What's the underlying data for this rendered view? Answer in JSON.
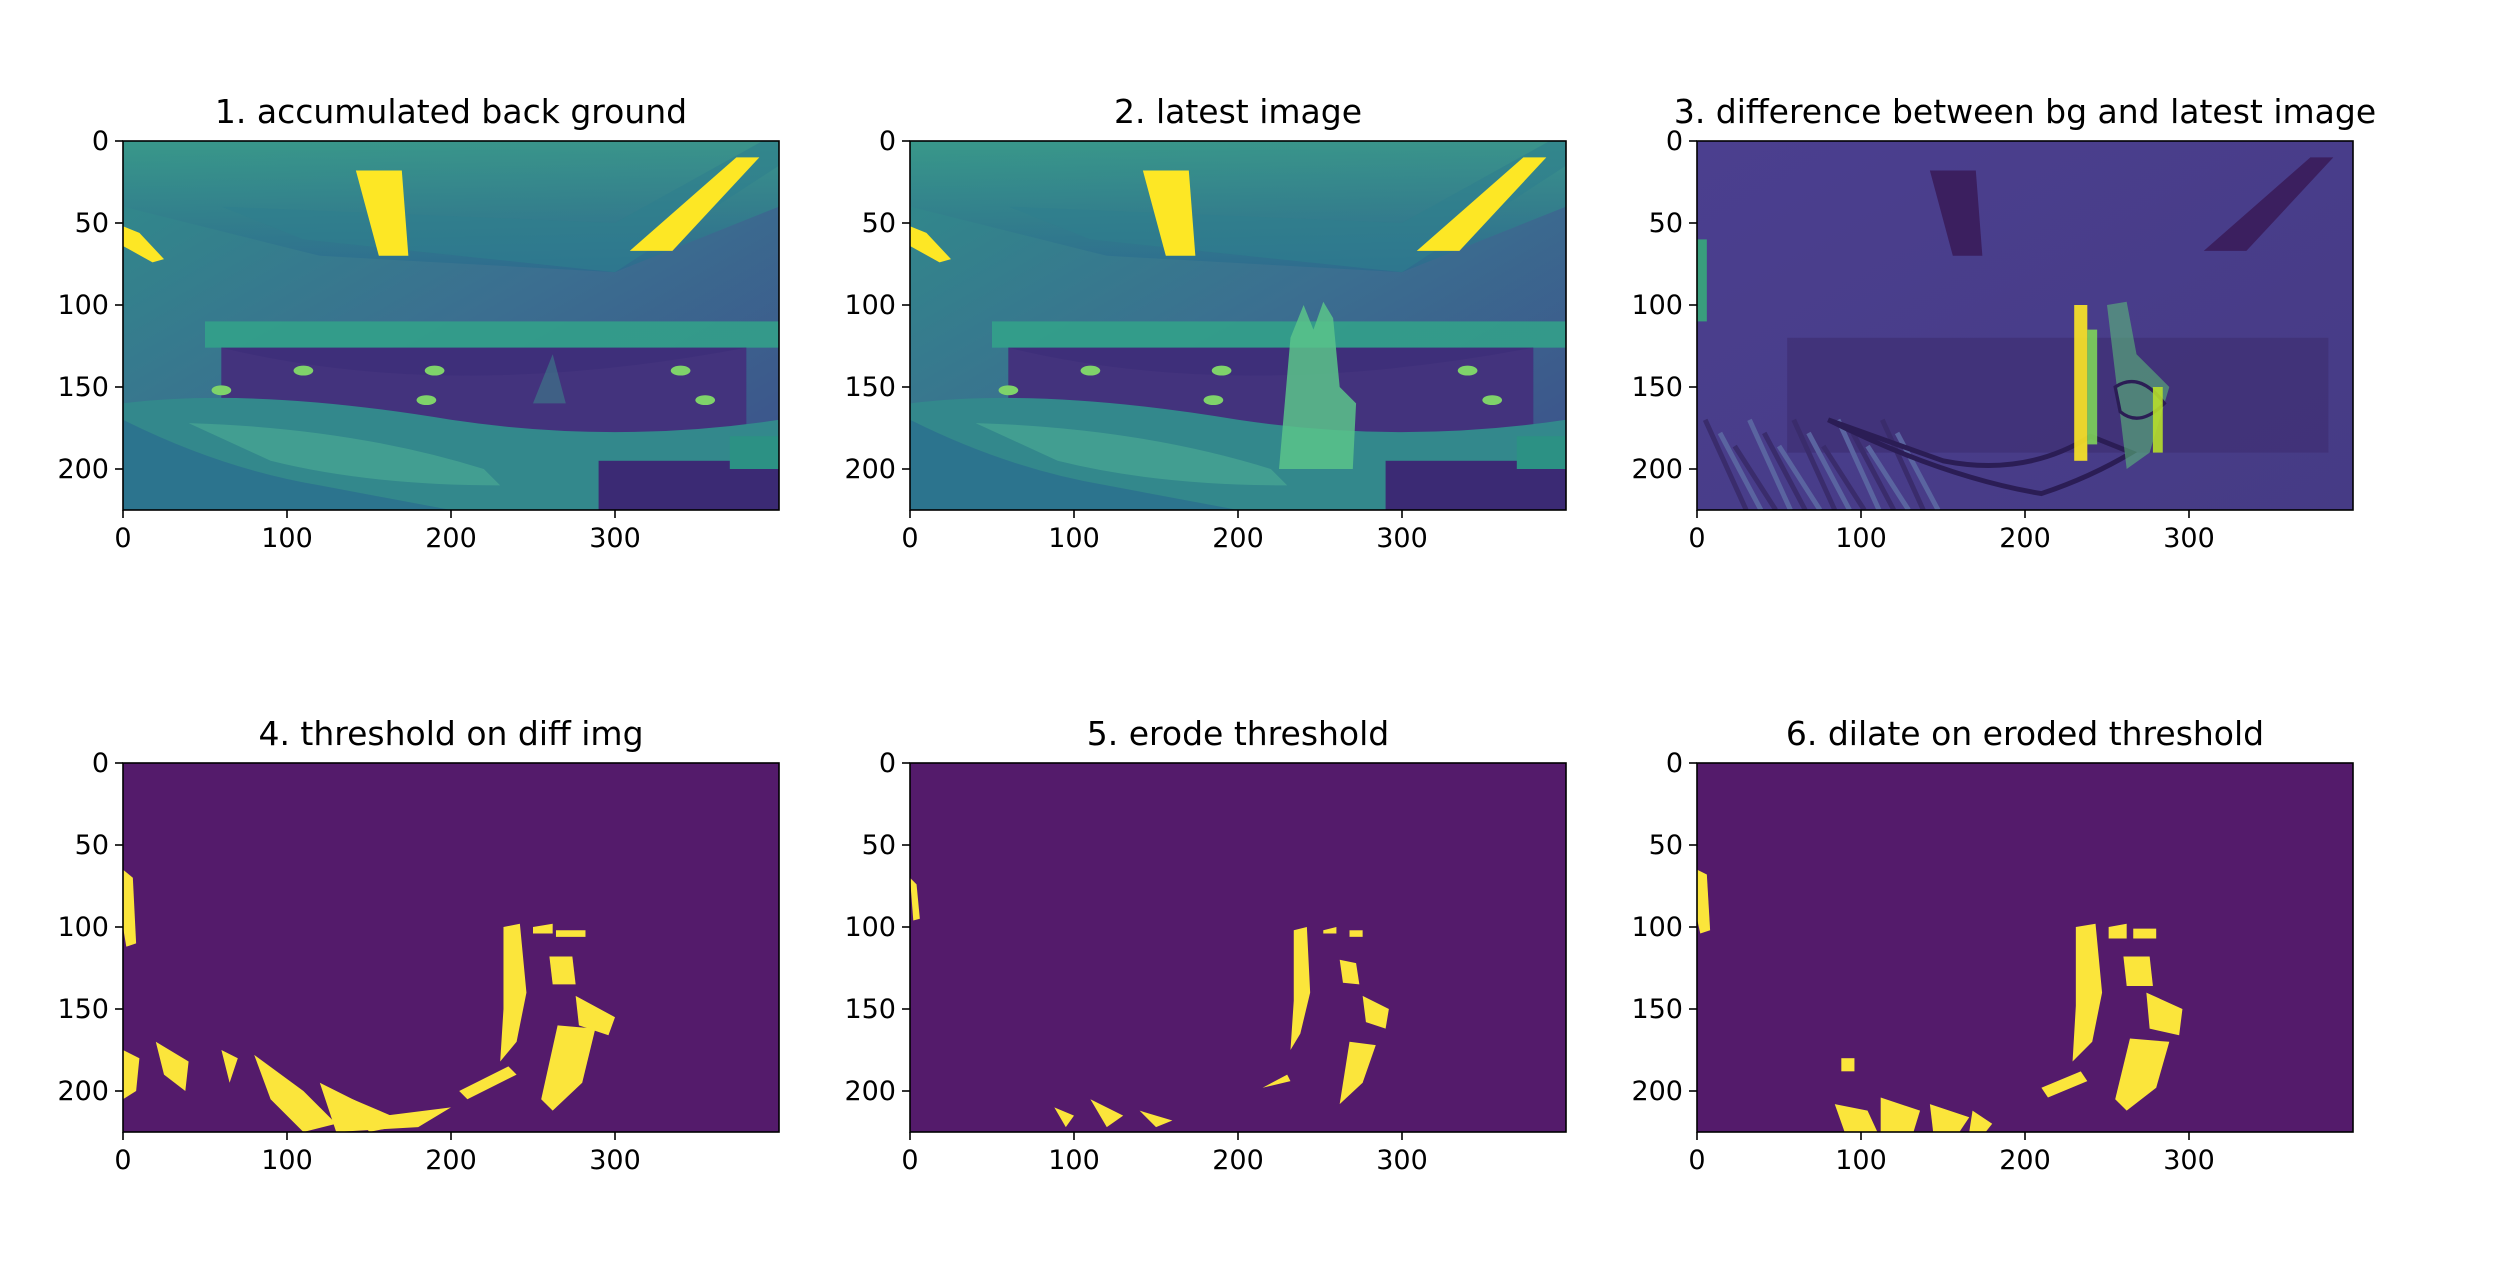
{
  "figure": {
    "panels": [
      {
        "id": "p1",
        "title": "1. accumulated back ground",
        "kind": "grayscale-bg"
      },
      {
        "id": "p2",
        "title": "2. latest image",
        "kind": "grayscale-hand"
      },
      {
        "id": "p3",
        "title": "3. difference between bg and latest image",
        "kind": "diff"
      },
      {
        "id": "p4",
        "title": "4. threshold on diff img",
        "kind": "mask-raw"
      },
      {
        "id": "p5",
        "title": "5. erode threshold",
        "kind": "mask-eroded"
      },
      {
        "id": "p6",
        "title": "6. dilate on eroded threshold",
        "kind": "mask-dilated"
      }
    ],
    "x_ticks": [
      "0",
      "100",
      "200",
      "300"
    ],
    "y_ticks": [
      "0",
      "50",
      "100",
      "150",
      "200"
    ],
    "x_tick_values": [
      0,
      100,
      200,
      300
    ],
    "y_tick_values": [
      0,
      50,
      100,
      150,
      200
    ],
    "image_extent": {
      "width": 400,
      "height": 225
    },
    "colormap": "viridis",
    "colors": {
      "mask_background": "#541b6b",
      "mask_foreground": "#fbe53b",
      "viridis_dark": "#440154",
      "viridis_mid": "#2a788e",
      "viridis_light": "#fde725"
    }
  }
}
